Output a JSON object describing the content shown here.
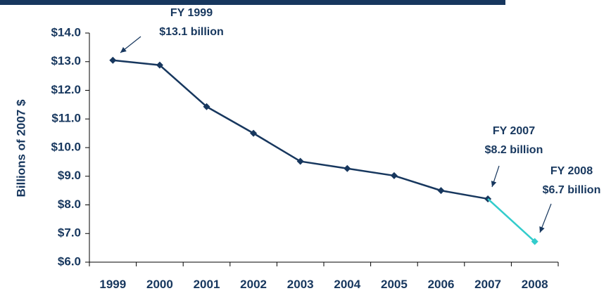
{
  "chart_data": {
    "type": "line",
    "categories": [
      "1999",
      "2000",
      "2001",
      "2002",
      "2003",
      "2004",
      "2005",
      "2006",
      "2007",
      "2008"
    ],
    "series": [
      {
        "values": [
          13.05,
          12.88,
          11.43,
          10.5,
          9.52,
          9.27,
          9.02,
          8.5,
          8.21,
          null
        ],
        "color": "#17375e"
      },
      {
        "values": [
          null,
          null,
          null,
          null,
          null,
          null,
          null,
          null,
          8.21,
          6.72
        ],
        "color": "#33cccc"
      }
    ],
    "xlabel": "",
    "ylabel": "Billions of 2007 $",
    "ylim": [
      6.0,
      14.0
    ],
    "yticks": [
      6,
      7,
      8,
      9,
      10,
      11,
      12,
      13,
      14
    ],
    "ytick_labels": [
      "$6.0",
      "$7.0",
      "$8.0",
      "$9.0",
      "$10.0",
      "$11.0",
      "$12.0",
      "$13.0",
      "$14.0"
    ],
    "grid": false,
    "annotations": [
      {
        "line1": "FY 1999",
        "line2": "$13.1 billion",
        "category": "1999"
      },
      {
        "line1": "FY 2007",
        "line2": "$8.2 billion",
        "category": "2007"
      },
      {
        "line1": "FY 2008",
        "line2": "$6.7 billion",
        "category": "2008"
      }
    ]
  },
  "colors": {
    "header_bar": "#17375e",
    "axis": "#000000",
    "text": "#17375e"
  }
}
